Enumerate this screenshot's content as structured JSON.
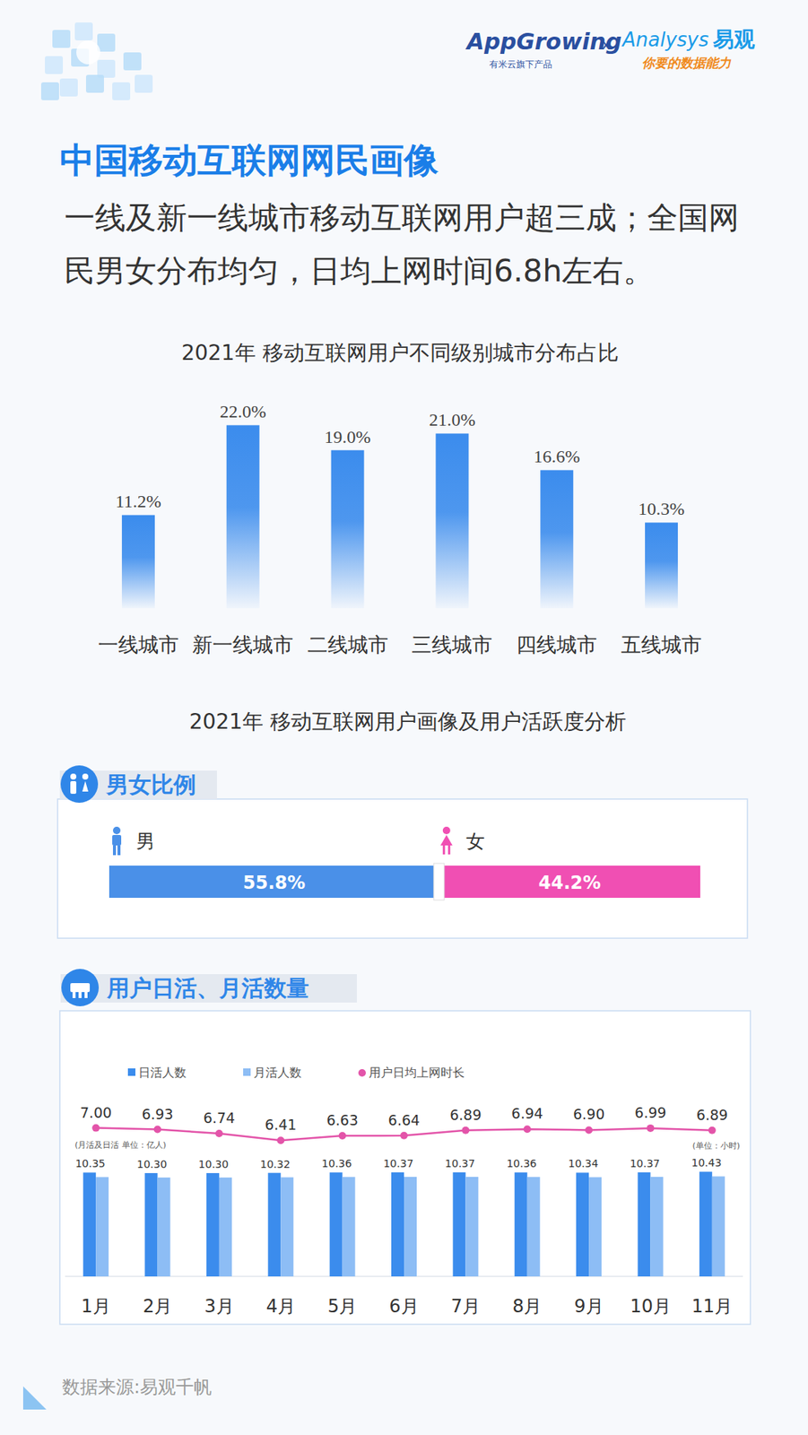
{
  "header": {
    "logo_left": "AppGrowing",
    "logo_left_sub": "有米云旗下产品",
    "separator": "x",
    "logo_right": "Analysys",
    "logo_right_cn": "易观",
    "logo_right_sub": "你要的数据能力",
    "title": "中国移动互联网网民画像",
    "subtitle": "一线及新一线城市移动互联网用户超三成；全国网民男女分布均匀，日均上网时间6.8h左右。"
  },
  "section_title": "2021年 移动互联网用户画像及用户活跃度分析",
  "chart_data": [
    {
      "type": "bar",
      "title": "2021年 移动互联网用户不同级别城市分布占比",
      "categories": [
        "一线城市",
        "新一线城市",
        "二线城市",
        "三线城市",
        "四线城市",
        "五线城市"
      ],
      "values": [
        11.2,
        22.0,
        19.0,
        21.0,
        16.6,
        10.3
      ],
      "value_labels": [
        "11.2%",
        "22.0%",
        "19.0%",
        "21.0%",
        "16.6%",
        "10.3%"
      ],
      "color": "#3b8ced",
      "ylim": [
        0,
        25
      ],
      "data_labels": true,
      "tick_labels": "x",
      "grid": false
    },
    {
      "type": "bar",
      "title": "男女比例",
      "orientation": "horizontal",
      "stacked": true,
      "categories": [
        null
      ],
      "series": [
        {
          "name": "男",
          "color": "#4a90e8",
          "values": [
            55.8
          ],
          "value_labels": [
            "55.8%"
          ]
        },
        {
          "name": "女",
          "color": "#f04fb3",
          "values": [
            44.2
          ],
          "value_labels": [
            "44.2%"
          ]
        }
      ],
      "xlim": [
        0,
        100
      ],
      "data_labels": true,
      "tick_labels": false,
      "legend": "top"
    },
    {
      "type": "bar",
      "title": "用户日活、月活数量",
      "categories": [
        "1月",
        "2月",
        "3月",
        "4月",
        "5月",
        "6月",
        "7月",
        "8月",
        "9月",
        "10月",
        "11月"
      ],
      "series": [
        {
          "name": "日活人数",
          "color": "#3b8ced",
          "values": [
            10.35,
            10.3,
            10.3,
            10.32,
            10.36,
            10.37,
            10.37,
            10.36,
            10.34,
            10.37,
            10.43
          ],
          "value_labels": [
            "10.35",
            "10.30",
            "10.30",
            "10.32",
            "10.36",
            "10.37",
            "10.37",
            "10.36",
            "10.34",
            "10.37",
            "10.43"
          ]
        },
        {
          "name": "月活人数",
          "color": "#8dbdf5",
          "values": [
            9.9,
            9.86,
            9.86,
            9.88,
            9.91,
            9.92,
            9.92,
            9.91,
            9.89,
            9.92,
            9.97
          ]
        },
        {
          "name": "用户日均上网时长",
          "type": "line",
          "axis": "y2",
          "color": "#e354a9",
          "marker": "circle",
          "values": [
            7.0,
            6.93,
            6.74,
            6.41,
            6.63,
            6.64,
            6.89,
            6.94,
            6.9,
            6.99,
            6.89
          ],
          "value_labels": [
            "7.00",
            "6.93",
            "6.74",
            "6.41",
            "6.63",
            "6.64",
            "6.89",
            "6.94",
            "6.90",
            "6.99",
            "6.89"
          ]
        }
      ],
      "ylim": [
        0,
        18.5
      ],
      "y2lim": [
        0,
        8.75
      ],
      "annotations": [
        "(月活及日活 单位：亿人)",
        "(单位：小时)"
      ],
      "data_labels": true,
      "tick_labels": "x",
      "legend": "top-left",
      "grid": false
    }
  ],
  "source": "数据来源:易观千帆"
}
